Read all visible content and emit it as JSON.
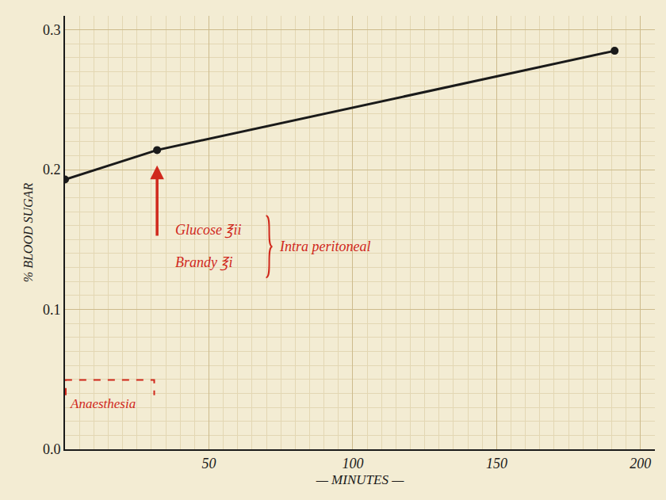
{
  "chart_data": {
    "type": "line",
    "x": [
      0,
      32,
      191
    ],
    "values": [
      0.193,
      0.214,
      0.285
    ],
    "color": "#1a1a1a",
    "marker": "circle",
    "line_style": "solid",
    "xlim": [
      0,
      205
    ],
    "ylim": [
      0,
      0.31
    ],
    "xticks": [
      50,
      100,
      150,
      200
    ],
    "yticks": [
      {
        "value": 0,
        "label": "0.0"
      },
      0.1,
      0.2,
      0.3
    ],
    "x_label": "— MINUTES —",
    "y_label": "% BLOOD SUGAR",
    "grid": true,
    "annotations": [
      {
        "x": 32,
        "texts": [
          "Glucose ℥ii",
          "Brandy ℥i"
        ],
        "bracket_text": "Intra peritoneal",
        "color": "#d0281c"
      }
    ],
    "spans": [
      {
        "label": "Anaesthesia",
        "start": 0,
        "end": 31,
        "color": "#d0281c"
      }
    ]
  }
}
